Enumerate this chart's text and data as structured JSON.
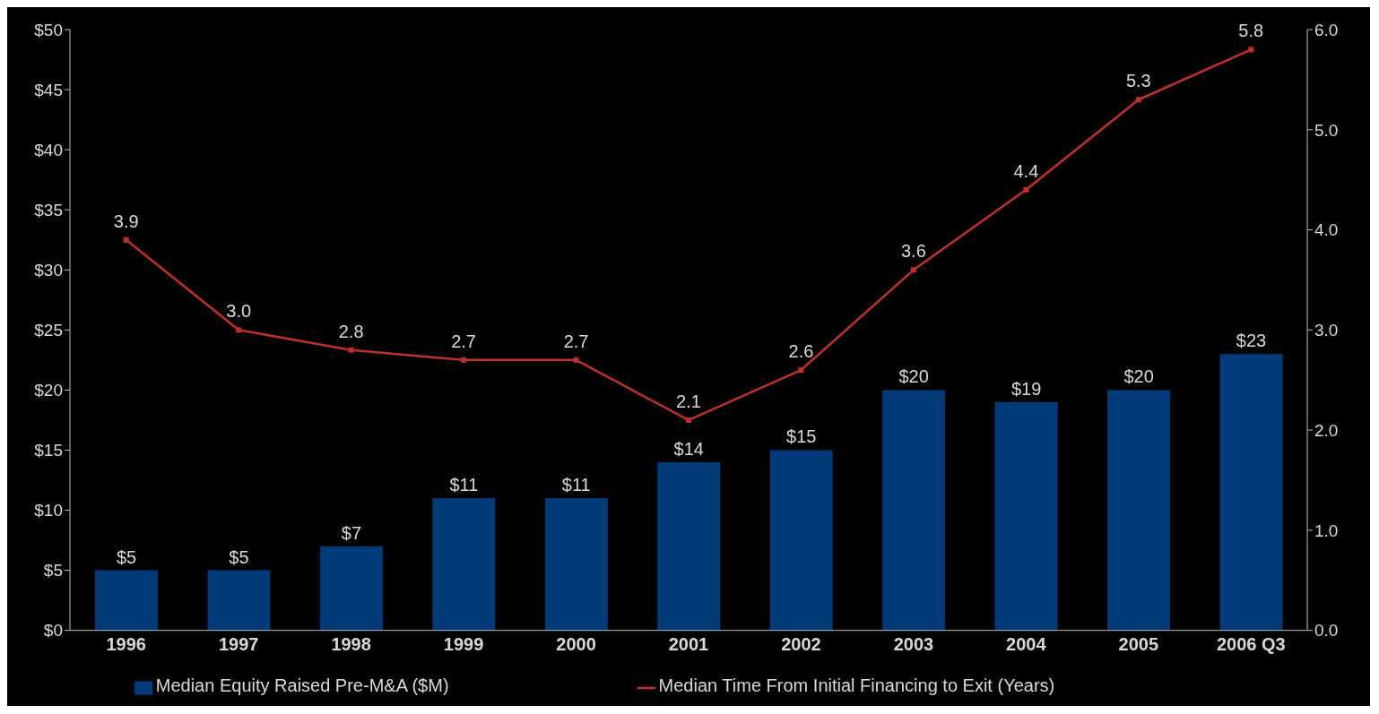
{
  "chart_data": {
    "type": "bar",
    "categories": [
      "1996",
      "1997",
      "1998",
      "1999",
      "2000",
      "2001",
      "2002",
      "2003",
      "2004",
      "2005",
      "2006 Q3"
    ],
    "series": [
      {
        "name": "Median Equity Raised Pre-M&A ($M)",
        "color": "#003a78",
        "values": [
          5,
          5,
          7,
          11,
          11,
          14,
          15,
          20,
          19,
          20,
          23
        ],
        "value_labels": [
          "$5",
          "$5",
          "$7",
          "$11",
          "$11",
          "$14",
          "$15",
          "$20",
          "$19",
          "$20",
          "$23"
        ]
      },
      {
        "name": "Median Time From Initial Financing to Exit (Years)",
        "type": "line",
        "axis": "y2",
        "color": "#c0302a",
        "values": [
          3.9,
          3.0,
          2.8,
          2.7,
          2.7,
          2.1,
          2.6,
          3.6,
          4.4,
          5.3,
          5.8
        ],
        "value_labels": [
          "3.9",
          "3.0",
          "2.8",
          "2.7",
          "2.7",
          "2.1",
          "2.6",
          "3.6",
          "4.4",
          "5.3",
          "5.8"
        ]
      }
    ],
    "ylim": [
      0,
      50
    ],
    "yticks": [
      {
        "value": 0,
        "label": "$0"
      },
      {
        "value": 5,
        "label": "$5"
      },
      {
        "value": 10,
        "label": "$10"
      },
      {
        "value": 15,
        "label": "$15"
      },
      {
        "value": 20,
        "label": "$20"
      },
      {
        "value": 25,
        "label": "$25"
      },
      {
        "value": 30,
        "label": "$30"
      },
      {
        "value": 35,
        "label": "$35"
      },
      {
        "value": 40,
        "label": "$40"
      },
      {
        "value": 45,
        "label": "$45"
      },
      {
        "value": 50,
        "label": "$50"
      }
    ],
    "y2lim": [
      0,
      6
    ],
    "y2ticks": [
      {
        "value": 0,
        "label": "0.0"
      },
      {
        "value": 1,
        "label": "1.0"
      },
      {
        "value": 2,
        "label": "2.0"
      },
      {
        "value": 3,
        "label": "3.0"
      },
      {
        "value": 4,
        "label": "4.0"
      },
      {
        "value": 5,
        "label": "5.0"
      },
      {
        "value": 6,
        "label": "6.0"
      }
    ],
    "grid": false,
    "legend": "bottom",
    "marker": "square",
    "line_style": "solid"
  }
}
